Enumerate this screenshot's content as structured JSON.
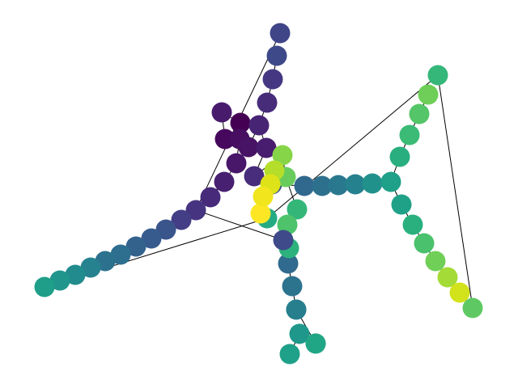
{
  "chart_data": {
    "type": "network",
    "nodes": [
      {
        "id": "n01",
        "color": "#481b6d"
      },
      {
        "id": "n02",
        "color": "#440154"
      },
      {
        "id": "n03",
        "color": "#46085c"
      },
      {
        "id": "n04",
        "color": "#470e61"
      },
      {
        "id": "n05",
        "color": "#471365"
      },
      {
        "id": "n06",
        "color": "#481769"
      },
      {
        "id": "n07",
        "color": "#482071"
      },
      {
        "id": "n08",
        "color": "#472a7a"
      },
      {
        "id": "n09",
        "color": "#463480"
      },
      {
        "id": "n10",
        "color": "#433e85"
      },
      {
        "id": "n11",
        "color": "#404588"
      },
      {
        "id": "n12",
        "color": "#3a548c"
      },
      {
        "id": "n13",
        "color": "#375b8d"
      },
      {
        "id": "n14",
        "color": "#33628d"
      },
      {
        "id": "n15",
        "color": "#2e6e8e"
      },
      {
        "id": "n16",
        "color": "#2c728e"
      },
      {
        "id": "n17",
        "color": "#26828e"
      },
      {
        "id": "n18",
        "color": "#228b8d"
      },
      {
        "id": "n19",
        "color": "#1f958b"
      },
      {
        "id": "n20",
        "color": "#1f9e89"
      },
      {
        "id": "n21",
        "color": "#25ab82"
      },
      {
        "id": "n22",
        "color": "#35b779"
      },
      {
        "id": "n23",
        "color": "#5ec962"
      },
      {
        "id": "n24",
        "color": "#482475"
      },
      {
        "id": "n25",
        "color": "#472c7a"
      },
      {
        "id": "n26",
        "color": "#453781"
      },
      {
        "id": "n27",
        "color": "#3e4989"
      },
      {
        "id": "n28",
        "color": "#481c6e"
      },
      {
        "id": "n29",
        "color": "#472d7b"
      },
      {
        "id": "n30",
        "color": "#3b528b"
      },
      {
        "id": "n31",
        "color": "#31688e"
      },
      {
        "id": "n32",
        "color": "#2d708e"
      },
      {
        "id": "n33",
        "color": "#2a788e"
      },
      {
        "id": "n34",
        "color": "#26818e"
      },
      {
        "id": "n35",
        "color": "#21918c"
      },
      {
        "id": "n36",
        "color": "#1fa088"
      },
      {
        "id": "n37",
        "color": "#29af7f"
      },
      {
        "id": "n38",
        "color": "#3bbb75"
      },
      {
        "id": "n39",
        "color": "#54c568"
      },
      {
        "id": "n40",
        "color": "#6ece58"
      },
      {
        "id": "n41",
        "color": "#1fa187"
      },
      {
        "id": "n42",
        "color": "#2ab07f"
      },
      {
        "id": "n43",
        "color": "#4ac16d"
      },
      {
        "id": "n44",
        "color": "#70cf57"
      },
      {
        "id": "n45",
        "color": "#a5db36"
      },
      {
        "id": "n46",
        "color": "#d2e21b"
      },
      {
        "id": "n47",
        "color": "#306a8e"
      },
      {
        "id": "n48",
        "color": "#2c738e"
      },
      {
        "id": "n49",
        "color": "#2a778e"
      },
      {
        "id": "n50",
        "color": "#277f8e"
      },
      {
        "id": "n51",
        "color": "#24878e"
      },
      {
        "id": "n52",
        "color": "#1f988b"
      },
      {
        "id": "n53",
        "color": "#1fa088"
      },
      {
        "id": "n54",
        "color": "#2db27d"
      },
      {
        "id": "n55",
        "color": "#34b679"
      },
      {
        "id": "n56",
        "color": "#86d549"
      },
      {
        "id": "n57",
        "color": "#67cc5c"
      },
      {
        "id": "n58",
        "color": "#b5de2b"
      },
      {
        "id": "n59",
        "color": "#dde318"
      },
      {
        "id": "n60",
        "color": "#4ec36b"
      },
      {
        "id": "n61",
        "color": "#fde725"
      },
      {
        "id": "n62",
        "color": "#f1e51d"
      },
      {
        "id": "n63",
        "color": "#21a685"
      },
      {
        "id": "n64",
        "color": "#3e4a89"
      }
    ],
    "edges": [
      [
        "n01",
        "n02"
      ],
      [
        "n01",
        "n03"
      ],
      [
        "n02",
        "n04"
      ],
      [
        "n03",
        "n05"
      ],
      [
        "n04",
        "n06"
      ],
      [
        "n05",
        "n06"
      ],
      [
        "n06",
        "n07"
      ],
      [
        "n07",
        "n08"
      ],
      [
        "n07",
        "n09"
      ],
      [
        "n08",
        "n10"
      ],
      [
        "n09",
        "n11"
      ],
      [
        "n10",
        "n12"
      ],
      [
        "n12",
        "n13"
      ],
      [
        "n13",
        "n14"
      ],
      [
        "n14",
        "n15"
      ],
      [
        "n15",
        "n16"
      ],
      [
        "n16",
        "n17"
      ],
      [
        "n17",
        "n18"
      ],
      [
        "n18",
        "n19"
      ],
      [
        "n19",
        "n20"
      ],
      [
        "n20",
        "n21"
      ],
      [
        "n21",
        "n22"
      ],
      [
        "n22",
        "n23"
      ],
      [
        "n05",
        "n24"
      ],
      [
        "n24",
        "n25"
      ],
      [
        "n25",
        "n26"
      ],
      [
        "n26",
        "n27"
      ],
      [
        "n24",
        "n28"
      ],
      [
        "n28",
        "n29"
      ],
      [
        "n29",
        "n30"
      ],
      [
        "n30",
        "n31"
      ],
      [
        "n31",
        "n32"
      ],
      [
        "n32",
        "n33"
      ],
      [
        "n33",
        "n34"
      ],
      [
        "n34",
        "n35"
      ],
      [
        "n35",
        "n36"
      ],
      [
        "n36",
        "n37"
      ],
      [
        "n37",
        "n38"
      ],
      [
        "n38",
        "n39"
      ],
      [
        "n39",
        "n40"
      ],
      [
        "n36",
        "n41"
      ],
      [
        "n41",
        "n42"
      ],
      [
        "n42",
        "n43"
      ],
      [
        "n43",
        "n44"
      ],
      [
        "n44",
        "n45"
      ],
      [
        "n45",
        "n46"
      ],
      [
        "n09",
        "n64"
      ],
      [
        "n64",
        "n47"
      ],
      [
        "n47",
        "n48"
      ],
      [
        "n48",
        "n49"
      ],
      [
        "n49",
        "n50"
      ],
      [
        "n50",
        "n51"
      ],
      [
        "n51",
        "n52"
      ],
      [
        "n52",
        "n53"
      ],
      [
        "n51",
        "n63"
      ],
      [
        "n29",
        "n56"
      ],
      [
        "n56",
        "n57"
      ],
      [
        "n57",
        "n58"
      ],
      [
        "n58",
        "n59"
      ],
      [
        "n59",
        "n62"
      ],
      [
        "n62",
        "n61"
      ],
      [
        "n57",
        "n55"
      ],
      [
        "n55",
        "n60"
      ],
      [
        "n60",
        "n54"
      ],
      [
        "n54",
        "n47"
      ]
    ]
  }
}
